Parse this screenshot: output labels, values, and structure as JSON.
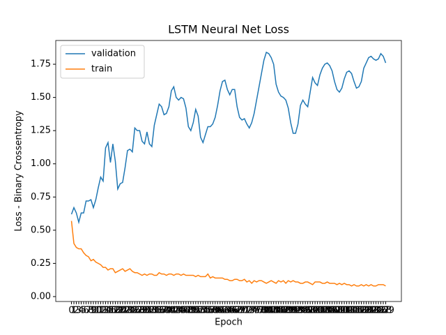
{
  "chart_data": {
    "type": "line",
    "title": "LSTM Neural Net Loss",
    "xlabel": "Epoch",
    "ylabel": "Loss - Binary Crossentropy",
    "categories": [
      "0",
      "1",
      "2",
      "3",
      "4",
      "5",
      "6",
      "7",
      "8",
      "9",
      "10",
      "11",
      "12",
      "13",
      "14",
      "15",
      "16",
      "17",
      "18",
      "19",
      "20",
      "21",
      "22",
      "23",
      "24",
      "25",
      "26",
      "27",
      "28",
      "29",
      "30",
      "31",
      "32",
      "33",
      "34",
      "35",
      "36",
      "37",
      "38",
      "39",
      "40",
      "41",
      "42",
      "43",
      "44",
      "45",
      "46",
      "47",
      "48",
      "49",
      "50",
      "51",
      "52",
      "53",
      "54",
      "55",
      "56",
      "57",
      "58",
      "59",
      "60",
      "61",
      "62",
      "63",
      "64",
      "65",
      "66",
      "67",
      "68",
      "69",
      "70",
      "71",
      "72",
      "73",
      "74",
      "75",
      "76",
      "77",
      "78",
      "79",
      "80",
      "81",
      "82",
      "83",
      "84",
      "85",
      "86",
      "87",
      "88",
      "89",
      "90",
      "91",
      "92",
      "93",
      "94",
      "95",
      "96",
      "97",
      "98",
      "99",
      "100",
      "101",
      "102",
      "103",
      "104",
      "105",
      "106",
      "107",
      "108",
      "109",
      "110",
      "111",
      "112",
      "113",
      "114",
      "115",
      "116",
      "117",
      "118",
      "119",
      "120",
      "121",
      "122",
      "123",
      "124",
      "125",
      "126",
      "127",
      "128",
      "129"
    ],
    "series": [
      {
        "name": "validation",
        "color": "#1f77b4",
        "values": [
          0.62,
          0.67,
          0.63,
          0.56,
          0.63,
          0.63,
          0.72,
          0.72,
          0.73,
          0.67,
          0.73,
          0.82,
          0.9,
          0.87,
          1.12,
          1.16,
          1.01,
          1.15,
          1.02,
          0.81,
          0.85,
          0.86,
          0.97,
          1.1,
          1.11,
          1.09,
          1.27,
          1.25,
          1.25,
          1.17,
          1.15,
          1.24,
          1.15,
          1.13,
          1.29,
          1.37,
          1.45,
          1.43,
          1.37,
          1.38,
          1.43,
          1.55,
          1.58,
          1.5,
          1.48,
          1.5,
          1.49,
          1.42,
          1.28,
          1.25,
          1.31,
          1.41,
          1.36,
          1.2,
          1.16,
          1.22,
          1.28,
          1.28,
          1.3,
          1.35,
          1.44,
          1.55,
          1.62,
          1.63,
          1.56,
          1.52,
          1.56,
          1.56,
          1.43,
          1.35,
          1.33,
          1.34,
          1.3,
          1.27,
          1.31,
          1.38,
          1.48,
          1.58,
          1.68,
          1.78,
          1.84,
          1.83,
          1.8,
          1.75,
          1.6,
          1.54,
          1.51,
          1.5,
          1.48,
          1.42,
          1.31,
          1.23,
          1.23,
          1.3,
          1.44,
          1.48,
          1.45,
          1.43,
          1.54,
          1.65,
          1.61,
          1.59,
          1.67,
          1.72,
          1.75,
          1.76,
          1.74,
          1.7,
          1.62,
          1.56,
          1.54,
          1.57,
          1.64,
          1.69,
          1.7,
          1.68,
          1.62,
          1.57,
          1.58,
          1.62,
          1.72,
          1.76,
          1.8,
          1.81,
          1.79,
          1.78,
          1.79,
          1.83,
          1.81,
          1.76
        ]
      },
      {
        "name": "train",
        "color": "#ff7f0e",
        "values": [
          0.57,
          0.4,
          0.37,
          0.36,
          0.36,
          0.33,
          0.31,
          0.3,
          0.27,
          0.28,
          0.26,
          0.25,
          0.24,
          0.22,
          0.22,
          0.2,
          0.21,
          0.21,
          0.18,
          0.19,
          0.2,
          0.21,
          0.19,
          0.2,
          0.21,
          0.19,
          0.18,
          0.18,
          0.17,
          0.16,
          0.17,
          0.16,
          0.17,
          0.17,
          0.16,
          0.16,
          0.18,
          0.17,
          0.17,
          0.16,
          0.17,
          0.17,
          0.16,
          0.17,
          0.17,
          0.16,
          0.17,
          0.16,
          0.16,
          0.16,
          0.16,
          0.15,
          0.16,
          0.15,
          0.15,
          0.15,
          0.17,
          0.14,
          0.15,
          0.14,
          0.14,
          0.14,
          0.14,
          0.13,
          0.13,
          0.12,
          0.12,
          0.13,
          0.13,
          0.12,
          0.12,
          0.13,
          0.11,
          0.12,
          0.1,
          0.12,
          0.11,
          0.12,
          0.12,
          0.11,
          0.1,
          0.11,
          0.12,
          0.11,
          0.1,
          0.12,
          0.11,
          0.12,
          0.1,
          0.12,
          0.11,
          0.12,
          0.11,
          0.11,
          0.1,
          0.1,
          0.11,
          0.11,
          0.1,
          0.09,
          0.11,
          0.11,
          0.11,
          0.1,
          0.1,
          0.11,
          0.1,
          0.1,
          0.1,
          0.09,
          0.1,
          0.09,
          0.1,
          0.09,
          0.09,
          0.08,
          0.09,
          0.08,
          0.08,
          0.09,
          0.08,
          0.09,
          0.08,
          0.09,
          0.08,
          0.08,
          0.09,
          0.09,
          0.09,
          0.08
        ]
      }
    ],
    "ylim": [
      -0.037,
      1.929
    ],
    "yticks": [
      {
        "value": 0,
        "label": "0.00"
      },
      {
        "value": 0.25,
        "label": "0.25"
      },
      {
        "value": 0.5,
        "label": "0.50"
      },
      {
        "value": 0.75,
        "label": "0.75"
      },
      {
        "value": 1,
        "label": "1.00"
      },
      {
        "value": 1.25,
        "label": "1.25"
      },
      {
        "value": 1.5,
        "label": "1.50"
      },
      {
        "value": 1.75,
        "label": "1.75"
      }
    ],
    "grid": false,
    "legend": "upper left"
  }
}
